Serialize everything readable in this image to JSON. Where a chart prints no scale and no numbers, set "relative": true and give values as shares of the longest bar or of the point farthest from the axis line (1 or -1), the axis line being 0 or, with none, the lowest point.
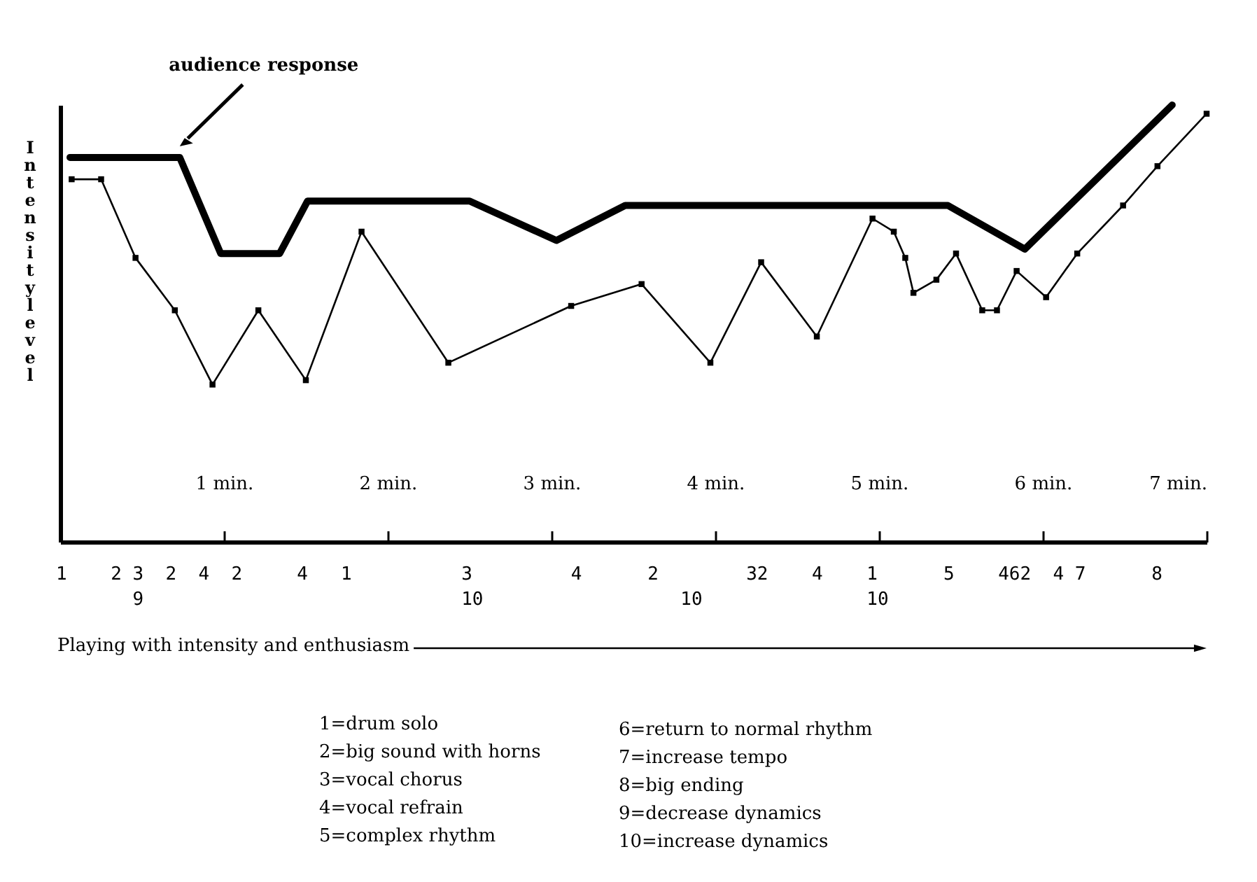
{
  "chart_data": {
    "type": "line",
    "relative": true,
    "ylabel": "Intensity level",
    "xlim": [
      0,
      7
    ],
    "xticks": [
      {
        "value": 1,
        "label": "1 min."
      },
      {
        "value": 2,
        "label": "2 min."
      },
      {
        "value": 3,
        "label": "3 min."
      },
      {
        "value": 4,
        "label": "4 min."
      },
      {
        "value": 5,
        "label": "5 min."
      },
      {
        "value": 6,
        "label": "6 min."
      },
      {
        "value": 7,
        "label": "7 min."
      }
    ],
    "grid": false,
    "legend": false,
    "series": [
      {
        "name": "audience response",
        "color": "#000000",
        "marker": "none",
        "x": [
          0.06,
          0.73,
          0.98,
          1.34,
          1.51,
          2.5,
          3.03,
          3.45,
          5.42,
          5.89,
          6.79
        ],
        "values": [
          0.88,
          0.88,
          0.66,
          0.66,
          0.78,
          0.78,
          0.69,
          0.77,
          0.77,
          0.67,
          1.0
        ]
      },
      {
        "color": "#000000",
        "marker": "square",
        "x": [
          0.07,
          0.25,
          0.46,
          0.7,
          0.93,
          1.21,
          1.5,
          1.84,
          2.37,
          3.12,
          3.55,
          3.97,
          4.28,
          4.62,
          4.96,
          5.09,
          5.16,
          5.21,
          5.35,
          5.47,
          5.63,
          5.72,
          5.84,
          6.02,
          6.21,
          6.49,
          6.7,
          7.0
        ],
        "values": [
          0.83,
          0.83,
          0.65,
          0.53,
          0.36,
          0.53,
          0.37,
          0.71,
          0.41,
          0.54,
          0.59,
          0.41,
          0.64,
          0.47,
          0.74,
          0.71,
          0.65,
          0.57,
          0.6,
          0.66,
          0.53,
          0.53,
          0.62,
          0.56,
          0.66,
          0.77,
          0.86,
          0.98
        ]
      }
    ],
    "annotations": [
      "1    2 3  2  4  2     4   1          3         4      2        32    4    1      5    462  4 7      8",
      "       9                             10                  10               10",
      "Playing with intensity and enthusiasm",
      "1=drum solo",
      "2=big sound with horns",
      "3=vocal chorus",
      "4=vocal refrain",
      "5=complex rhythm",
      "6=return to normal rhythm",
      "7=increase tempo",
      "8=big ending",
      "9=decrease dynamics",
      "10=increase dynamics"
    ]
  }
}
